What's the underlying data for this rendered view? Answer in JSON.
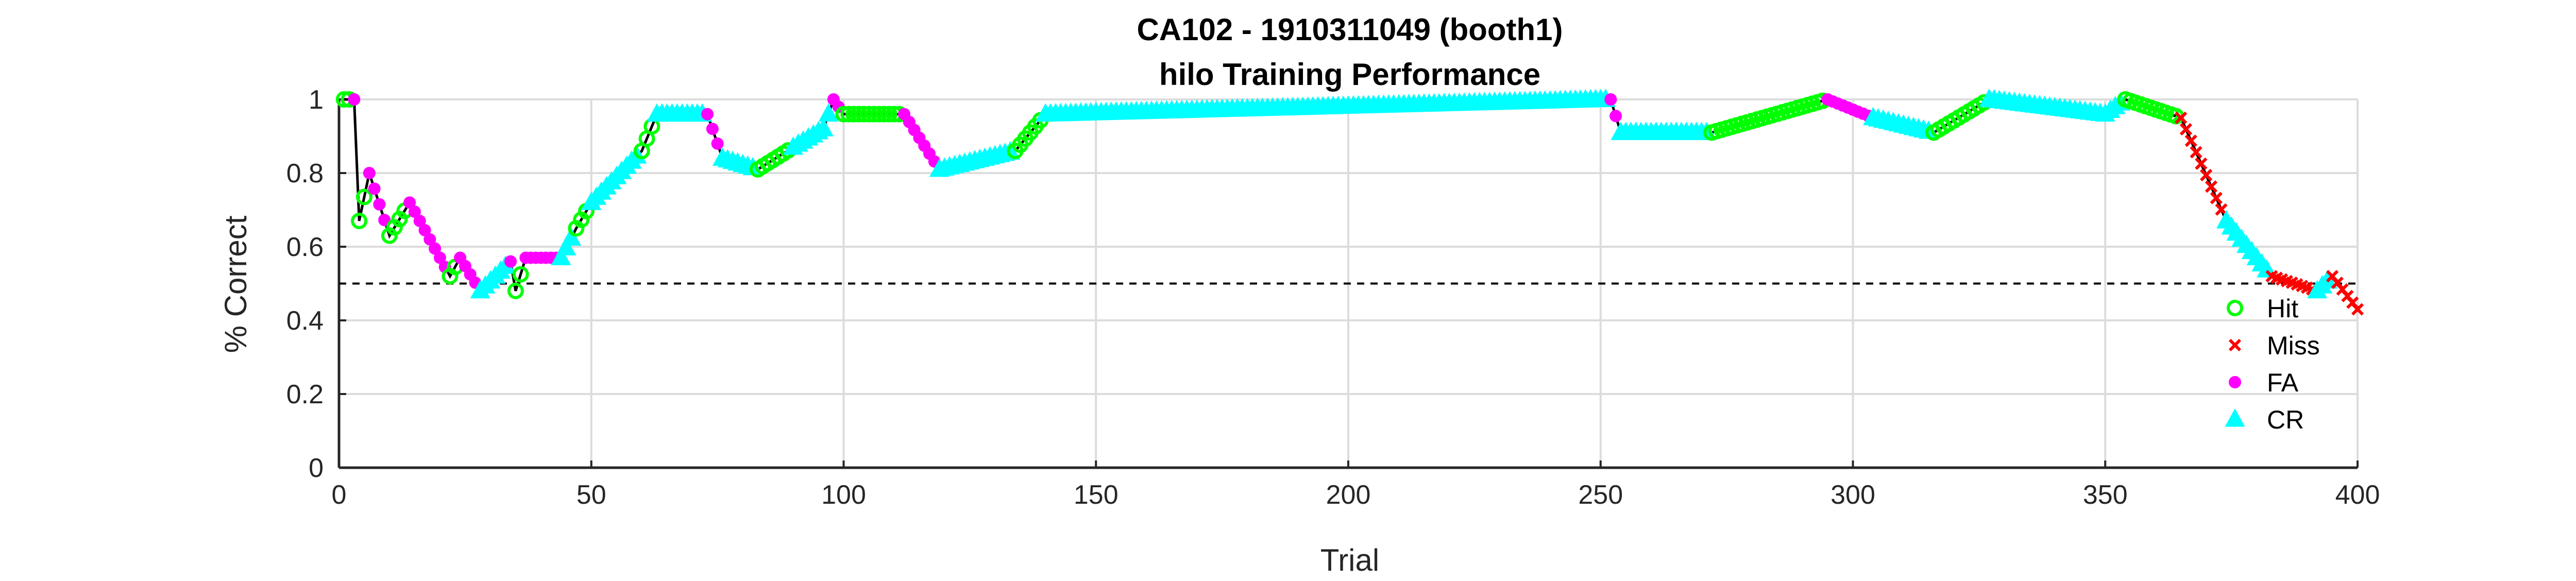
{
  "chart_data": {
    "type": "line",
    "title": "CA102 - 1910311049 (booth1)",
    "subtitle": "hilo Training Performance",
    "xlabel": "Trial",
    "ylabel": "% Correct",
    "xlim": [
      0,
      400
    ],
    "ylim": [
      0,
      1
    ],
    "xticks": [
      0,
      50,
      100,
      150,
      200,
      250,
      300,
      350,
      400
    ],
    "yticks": [
      0,
      0.2,
      0.4,
      0.6,
      0.8,
      1
    ],
    "ytick_labels": [
      "0",
      "0.2",
      "0.4",
      "0.6",
      "0.8",
      "1"
    ],
    "grid": true,
    "chance_level": 0.5,
    "legend_position": "lower-right",
    "legend": [
      {
        "name": "Hit",
        "color": "#00ff00",
        "marker": "open-circle"
      },
      {
        "name": "Miss",
        "color": "#ff0000",
        "marker": "x"
      },
      {
        "name": "FA",
        "color": "#ff00ff",
        "marker": "filled-circle"
      },
      {
        "name": "CR",
        "color": "#00ffff",
        "marker": "triangle"
      }
    ],
    "line_color": "#000000",
    "segments": [
      {
        "from": [
          1,
          1.0
        ],
        "to": [
          3,
          1.0
        ],
        "type": "Hit"
      },
      {
        "from": [
          3,
          1.0
        ],
        "to": [
          4,
          0.67
        ],
        "type": "FA"
      },
      {
        "from": [
          4,
          0.67
        ],
        "to": [
          6,
          0.8
        ],
        "type": "Hit"
      },
      {
        "from": [
          6,
          0.8
        ],
        "to": [
          10,
          0.63
        ],
        "type": "FA"
      },
      {
        "from": [
          10,
          0.63
        ],
        "to": [
          14,
          0.72
        ],
        "type": "Hit"
      },
      {
        "from": [
          14,
          0.72
        ],
        "to": [
          22,
          0.52
        ],
        "type": "FA"
      },
      {
        "from": [
          22,
          0.52
        ],
        "to": [
          24,
          0.57
        ],
        "type": "Hit"
      },
      {
        "from": [
          24,
          0.57
        ],
        "to": [
          28,
          0.48
        ],
        "type": "FA"
      },
      {
        "from": [
          28,
          0.48
        ],
        "to": [
          34,
          0.56
        ],
        "type": "CR"
      },
      {
        "from": [
          34,
          0.56
        ],
        "to": [
          35,
          0.48
        ],
        "type": "FA"
      },
      {
        "from": [
          35,
          0.48
        ],
        "to": [
          37,
          0.57
        ],
        "type": "Hit"
      },
      {
        "from": [
          37,
          0.57
        ],
        "to": [
          44,
          0.57
        ],
        "type": "FA"
      },
      {
        "from": [
          44,
          0.57
        ],
        "to": [
          47,
          0.65
        ],
        "type": "CR"
      },
      {
        "from": [
          47,
          0.65
        ],
        "to": [
          50,
          0.72
        ],
        "type": "Hit"
      },
      {
        "from": [
          50,
          0.72
        ],
        "to": [
          60,
          0.86
        ],
        "type": "CR"
      },
      {
        "from": [
          60,
          0.86
        ],
        "to": [
          63,
          0.96
        ],
        "type": "Hit"
      },
      {
        "from": [
          63,
          0.96
        ],
        "to": [
          73,
          0.96
        ],
        "type": "CR"
      },
      {
        "from": [
          73,
          0.96
        ],
        "to": [
          76,
          0.84
        ],
        "type": "FA"
      },
      {
        "from": [
          76,
          0.84
        ],
        "to": [
          83,
          0.81
        ],
        "type": "CR"
      },
      {
        "from": [
          83,
          0.81
        ],
        "to": [
          90,
          0.87
        ],
        "type": "Hit"
      },
      {
        "from": [
          90,
          0.87
        ],
        "to": [
          96,
          0.92
        ],
        "type": "CR"
      },
      {
        "from": [
          96,
          0.92
        ],
        "to": [
          98,
          1.0
        ],
        "type": "CR"
      },
      {
        "from": [
          98,
          1.0
        ],
        "to": [
          100,
          0.96
        ],
        "type": "FA"
      },
      {
        "from": [
          100,
          0.96
        ],
        "to": [
          112,
          0.96
        ],
        "type": "Hit"
      },
      {
        "from": [
          112,
          0.96
        ],
        "to": [
          119,
          0.81
        ],
        "type": "FA"
      },
      {
        "from": [
          119,
          0.81
        ],
        "to": [
          134,
          0.86
        ],
        "type": "CR"
      },
      {
        "from": [
          134,
          0.86
        ],
        "to": [
          140,
          0.96
        ],
        "type": "Hit"
      },
      {
        "from": [
          140,
          0.96
        ],
        "to": [
          252,
          1.0
        ],
        "type": "CR"
      },
      {
        "from": [
          252,
          1.0
        ],
        "to": [
          254,
          0.91
        ],
        "type": "FA"
      },
      {
        "from": [
          254,
          0.91
        ],
        "to": [
          272,
          0.91
        ],
        "type": "CR"
      },
      {
        "from": [
          272,
          0.91
        ],
        "to": [
          295,
          1.0
        ],
        "type": "Hit"
      },
      {
        "from": [
          295,
          1.0
        ],
        "to": [
          304,
          0.95
        ],
        "type": "FA"
      },
      {
        "from": [
          304,
          0.95
        ],
        "to": [
          316,
          0.91
        ],
        "type": "CR"
      },
      {
        "from": [
          316,
          0.91
        ],
        "to": [
          327,
          1.0
        ],
        "type": "Hit"
      },
      {
        "from": [
          327,
          1.0
        ],
        "to": [
          350,
          0.96
        ],
        "type": "CR"
      },
      {
        "from": [
          350,
          0.96
        ],
        "to": [
          354,
          1.0
        ],
        "type": "CR"
      },
      {
        "from": [
          354,
          1.0
        ],
        "to": [
          365,
          0.95
        ],
        "type": "Hit"
      },
      {
        "from": [
          365,
          0.95
        ],
        "to": [
          374,
          0.67
        ],
        "type": "Miss"
      },
      {
        "from": [
          374,
          0.67
        ],
        "to": [
          383,
          0.52
        ],
        "type": "CR"
      },
      {
        "from": [
          383,
          0.52
        ],
        "to": [
          392,
          0.48
        ],
        "type": "Miss"
      },
      {
        "from": [
          392,
          0.48
        ],
        "to": [
          395,
          0.52
        ],
        "type": "CR"
      },
      {
        "from": [
          395,
          0.52
        ],
        "to": [
          400,
          0.43
        ],
        "type": "Miss"
      }
    ]
  }
}
